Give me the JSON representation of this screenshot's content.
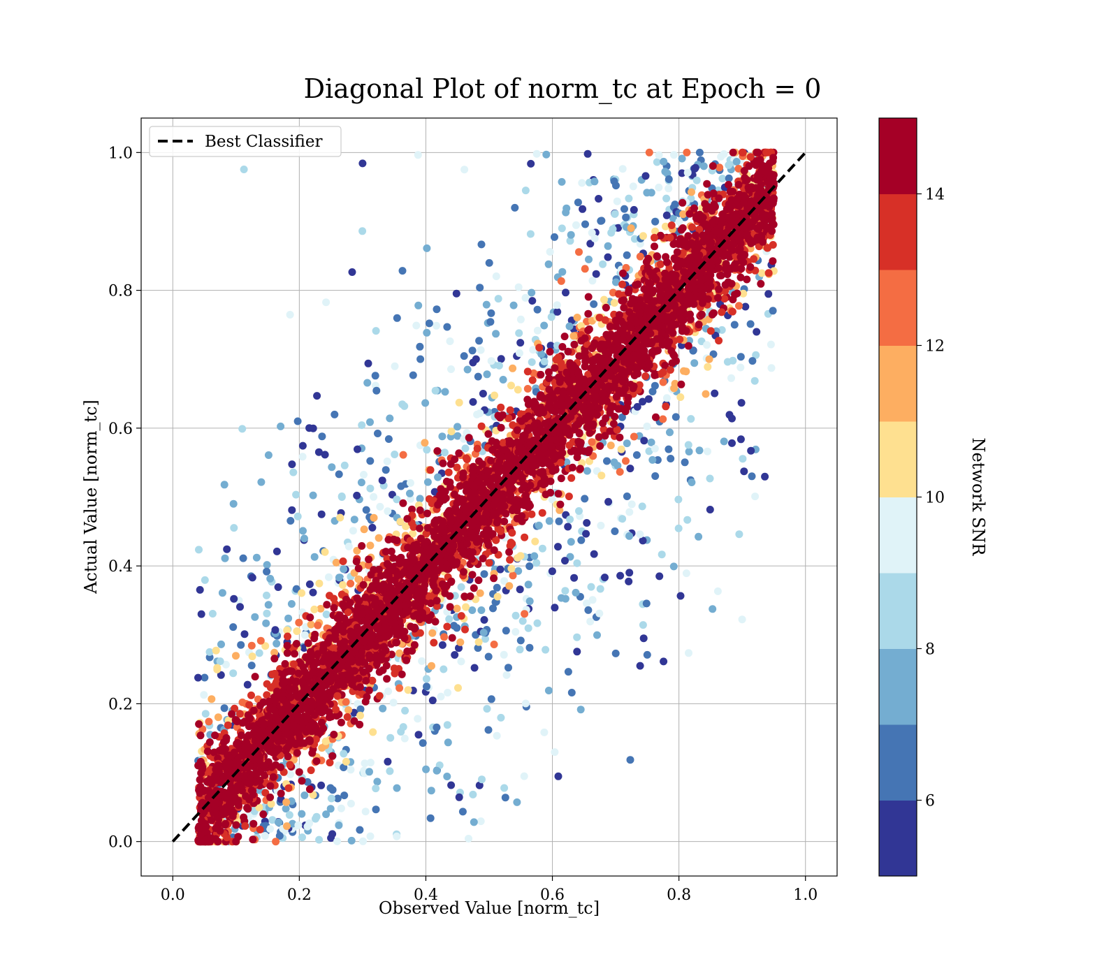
{
  "chart_data": {
    "type": "scatter",
    "title": "Diagonal Plot of norm_tc at Epoch = 0",
    "xlabel": "Observed Value [norm_tc]",
    "ylabel": "Actual Value [norm_tc]",
    "xlim": [
      -0.05,
      1.05
    ],
    "ylim": [
      -0.05,
      1.05
    ],
    "xticks": [
      "0.0",
      "0.2",
      "0.4",
      "0.6",
      "0.8",
      "1.0"
    ],
    "yticks": [
      "0.0",
      "0.2",
      "0.4",
      "0.6",
      "0.8",
      "1.0"
    ],
    "grid": true,
    "legend": {
      "placement": "top-left",
      "entries": [
        "Best Classifier"
      ]
    },
    "reference_line": {
      "name": "Best Classifier",
      "x": [
        0.0,
        1.0
      ],
      "y": [
        0.0,
        1.0
      ],
      "style": "dashed",
      "color": "#000000"
    },
    "colorbar": {
      "label": "Network SNR",
      "range": [
        5,
        15
      ],
      "tick_values": [
        6,
        8,
        10,
        12,
        14
      ],
      "tick_labels": [
        "6",
        "8",
        "10",
        "12",
        "14"
      ],
      "colors": [
        "#313695",
        "#4575b4",
        "#74add1",
        "#abd9e9",
        "#e0f3f8",
        "#fee090",
        "#fdae61",
        "#f46d43",
        "#d73027",
        "#a50026"
      ]
    },
    "scatter_summary": {
      "x_range": [
        0.04,
        0.95
      ],
      "y_range": [
        0.0,
        1.0
      ],
      "trend": "points concentrated along y = x; high-SNR points tightly on the diagonal band, low-SNR points scattered off-diagonal",
      "high_snr_band_halfwidth": 0.08
    }
  }
}
